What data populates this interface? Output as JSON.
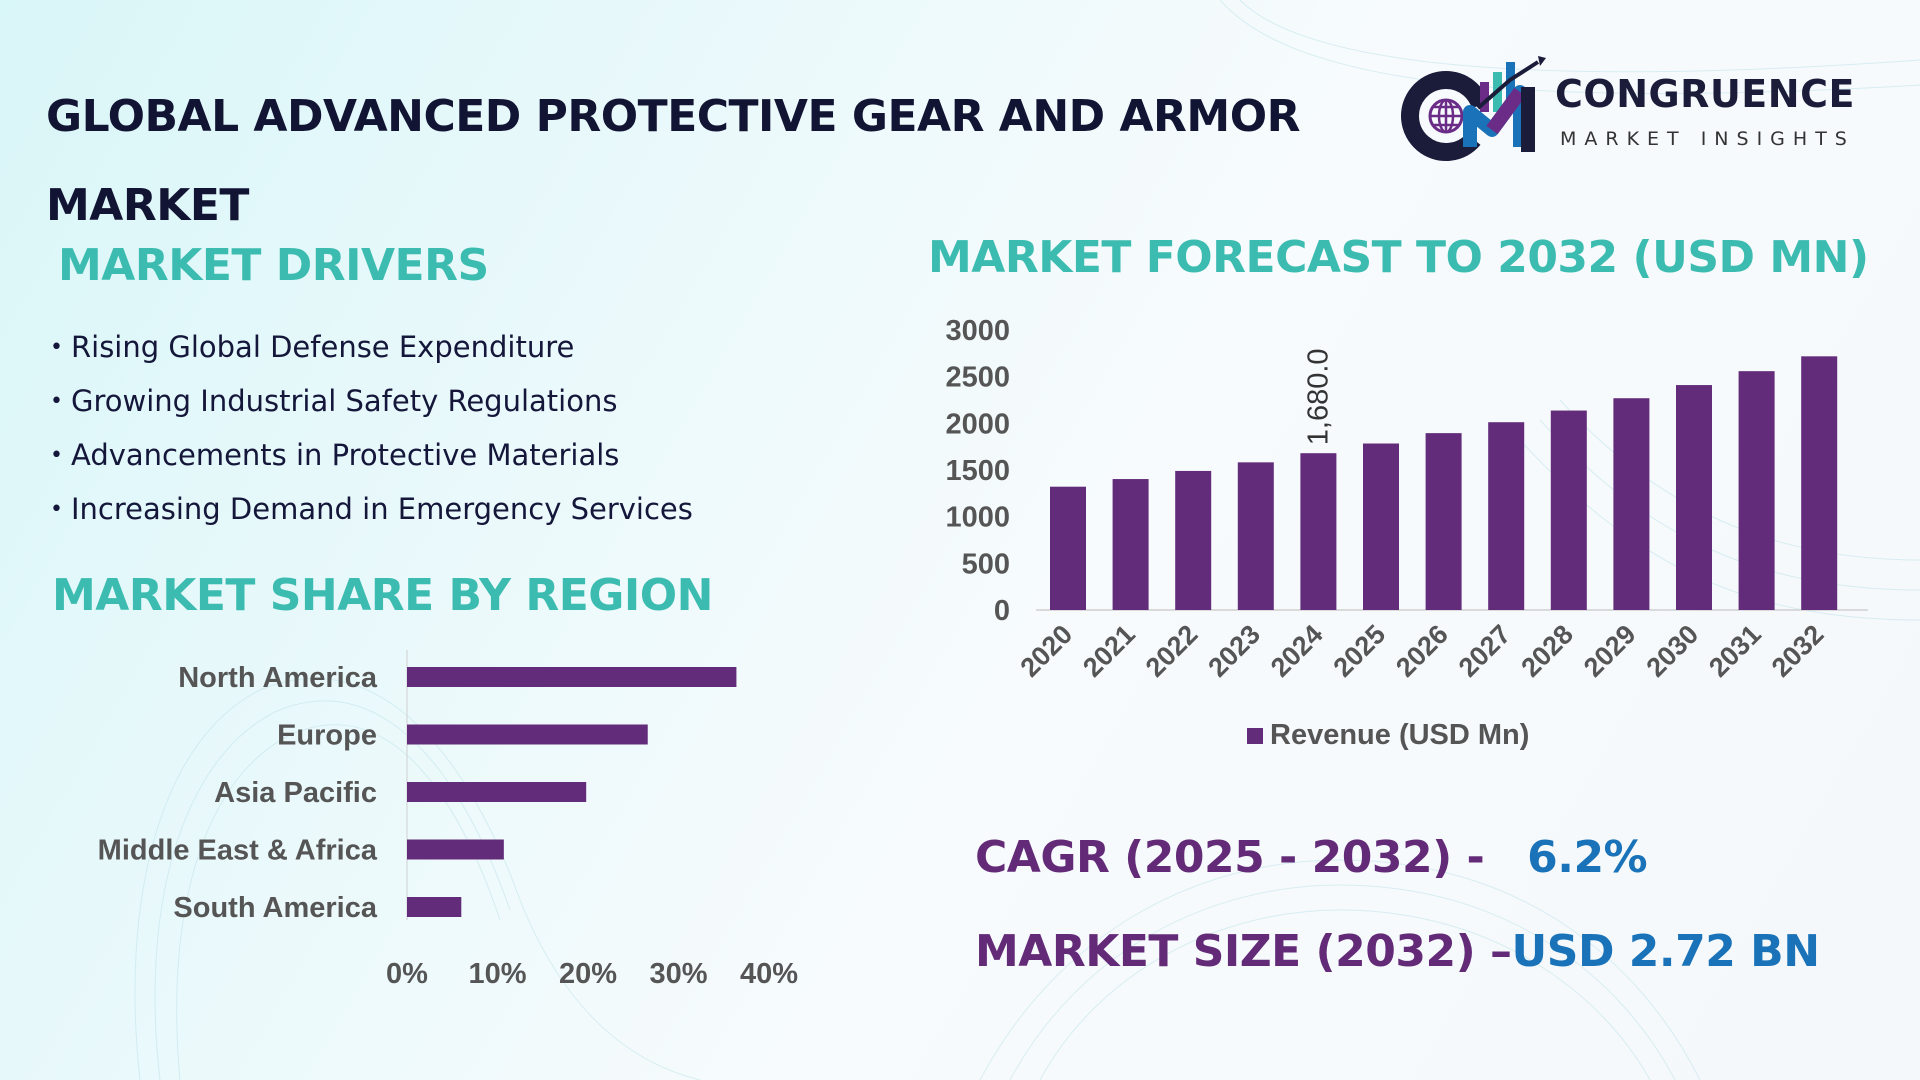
{
  "header": {
    "title": "GLOBAL ADVANCED PROTECTIVE GEAR AND ARMOR MARKET",
    "logo": {
      "brand": "CONGRUENCE",
      "tagline": "MARKET INSIGHTS",
      "icon": "cm-globe-chart-logo-icon"
    }
  },
  "drivers": {
    "heading": "MARKET DRIVERS",
    "items": [
      "Rising Global Defense Expenditure",
      "Growing Industrial Safety Regulations",
      "Advancements in Protective Materials",
      "Increasing Demand in Emergency Services"
    ]
  },
  "region": {
    "heading": "MARKET SHARE BY REGION"
  },
  "forecast": {
    "heading": "MARKET FORECAST TO 2032 (USD MN)"
  },
  "kpis": {
    "cagr_label": "CAGR (2025 - 2032) -",
    "cagr_value": "6.2%",
    "size_label": "MARKET SIZE (2032) –",
    "size_value": "USD 2.72 BN"
  },
  "colors": {
    "bar": "#622c7a",
    "heading": "#3cbcb0",
    "title": "#121433",
    "kpi_label": "#632a78",
    "kpi_value": "#1a73b8",
    "axis_text": "#555555"
  },
  "chart_data": [
    {
      "type": "bar",
      "orientation": "horizontal",
      "title": "MARKET SHARE BY REGION",
      "categories": [
        "North America",
        "Europe",
        "Asia Pacific",
        "Middle East & Africa",
        "South America"
      ],
      "values": [
        36.4,
        26.6,
        19.8,
        10.7,
        6.0
      ],
      "unit": "%",
      "xlim": [
        0,
        40
      ],
      "xticks": [
        "0%",
        "10%",
        "20%",
        "30%",
        "40%"
      ],
      "grid": false,
      "legend": "none"
    },
    {
      "type": "bar",
      "title": "MARKET FORECAST TO 2032 (USD MN)",
      "categories": [
        "2020",
        "2021",
        "2022",
        "2023",
        "2024",
        "2025",
        "2026",
        "2027",
        "2028",
        "2029",
        "2030",
        "2031",
        "2032"
      ],
      "series": [
        {
          "name": "Revenue (USD Mn)",
          "values": [
            1321,
            1403,
            1490,
            1582,
            1680,
            1784,
            1895,
            2012,
            2137,
            2269,
            2410,
            2559,
            2718
          ]
        }
      ],
      "data_labels": [
        {
          "category": "2024",
          "text": "1,680.0"
        }
      ],
      "ylim": [
        0,
        3000
      ],
      "yticks": [
        "0",
        "500",
        "1000",
        "1500",
        "2000",
        "2500",
        "3000"
      ],
      "xlabel": "",
      "ylabel": "",
      "grid": false,
      "legend": "bottom-center"
    }
  ]
}
